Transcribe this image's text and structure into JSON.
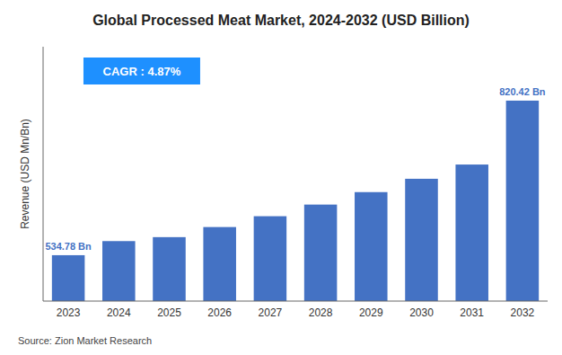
{
  "chart_data": {
    "type": "bar",
    "title": "Global Processed Meat Market, 2024-2032 (USD Billion)",
    "ylabel": "Revenue (USD Mn/Bn)",
    "categories": [
      "2023",
      "2024",
      "2025",
      "2026",
      "2027",
      "2028",
      "2029",
      "2030",
      "2031",
      "2032"
    ],
    "values": [
      534.78,
      560.83,
      568.16,
      586.8,
      606.83,
      628.33,
      651.36,
      675.99,
      702.3,
      820.42
    ],
    "color": "#4472C4",
    "ylim": [
      450,
      920
    ],
    "yticks": [],
    "grid": false,
    "tick_labels": "x",
    "annotations": [
      {
        "text": "534.78 Bn",
        "x": "2023",
        "y": 534.78
      },
      {
        "text": "820.42 Bn",
        "x": "2032",
        "y": 820.42
      },
      {
        "text": "CAGR : 4.87%",
        "color": "#1E90FF"
      }
    ],
    "source": "Source: Zion Market Research"
  }
}
